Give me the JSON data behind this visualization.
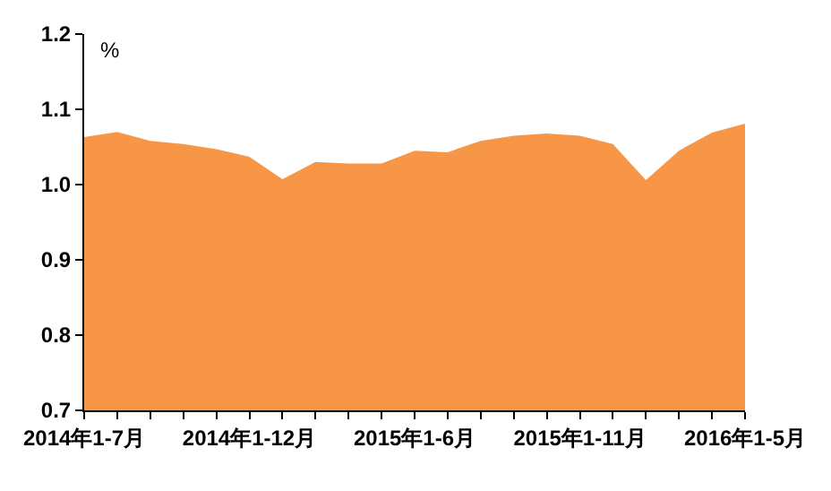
{
  "chart_data": {
    "type": "area",
    "ylabel": "%",
    "categories": [
      "2014年1-7月",
      null,
      null,
      null,
      null,
      "2014年1-12月",
      null,
      null,
      null,
      null,
      "2015年1-6月",
      null,
      null,
      null,
      null,
      "2015年1-11月",
      null,
      null,
      null,
      null,
      "2016年1-5月"
    ],
    "series": [
      {
        "color": "#f79646",
        "values": [
          1.063,
          1.07,
          1.058,
          1.054,
          1.047,
          1.037,
          1.007,
          1.03,
          1.028,
          1.028,
          1.045,
          1.043,
          1.058,
          1.065,
          1.068,
          1.065,
          1.054,
          1.006,
          1.045,
          1.069,
          1.081
        ]
      }
    ],
    "ylim": [
      0.7,
      1.2
    ],
    "yticks": [
      0.7,
      0.8,
      0.9,
      {
        "value": 1,
        "label": "1.0"
      },
      1.1,
      1.2
    ]
  }
}
